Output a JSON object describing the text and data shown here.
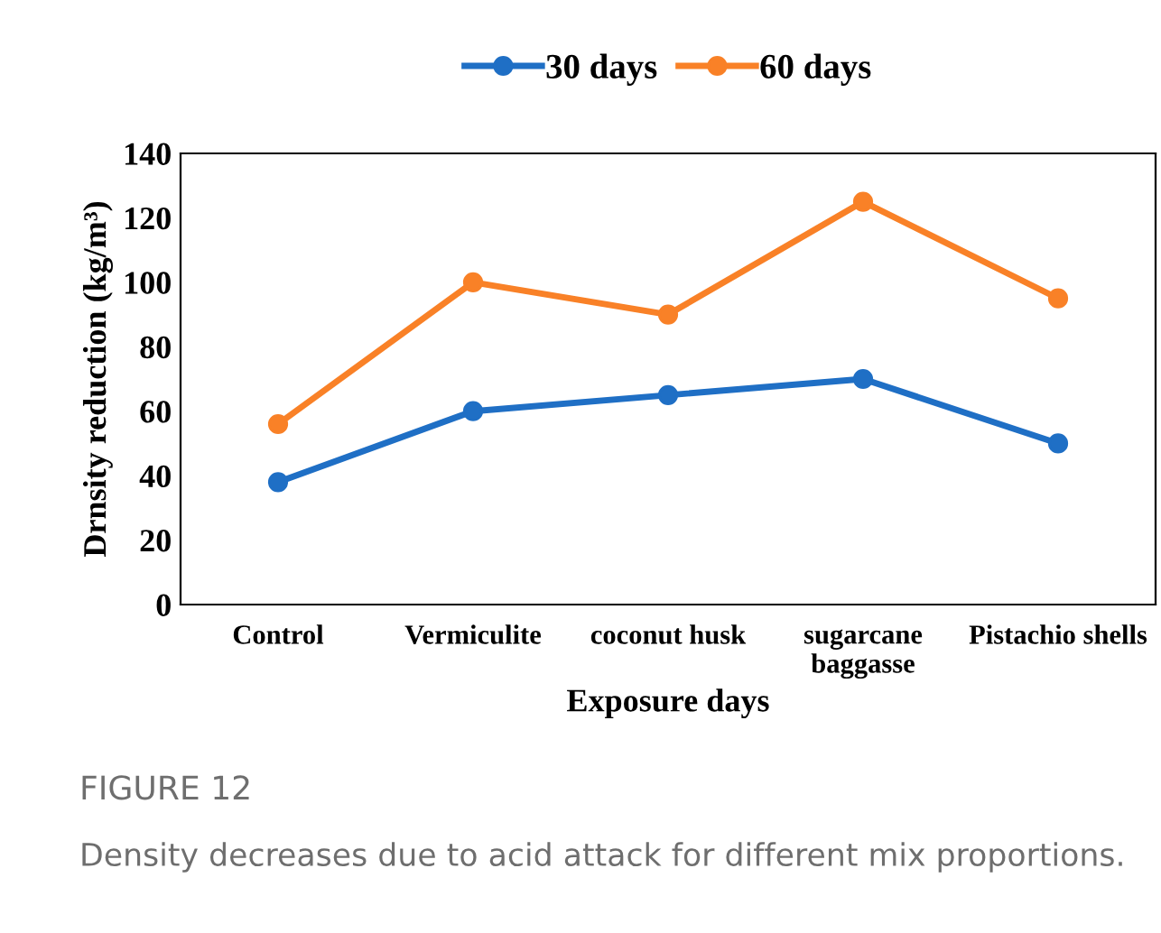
{
  "chart_data": {
    "type": "line",
    "xlabel": "Exposure days",
    "ylabel": "Drnsity reduction (kg/m³)",
    "categories": [
      "Control",
      "Vermiculite",
      "coconut husk",
      "sugarcane\nbaggasse",
      "Pistachio shells"
    ],
    "series": [
      {
        "name": "30 days",
        "color": "#1f6fc5",
        "values": [
          38,
          60,
          65,
          70,
          50
        ]
      },
      {
        "name": "60 days",
        "color": "#f98127",
        "values": [
          56,
          100,
          90,
          125,
          95
        ]
      }
    ],
    "ylim": [
      0,
      140
    ],
    "yticks": [
      0,
      20,
      40,
      60,
      80,
      100,
      120,
      140
    ],
    "grid": false,
    "legend": "top",
    "marker": "circle",
    "line_style": "solid",
    "annotations": [
      "FIGURE 12",
      "Density decreases due to acid attack for different mix proportions."
    ]
  }
}
